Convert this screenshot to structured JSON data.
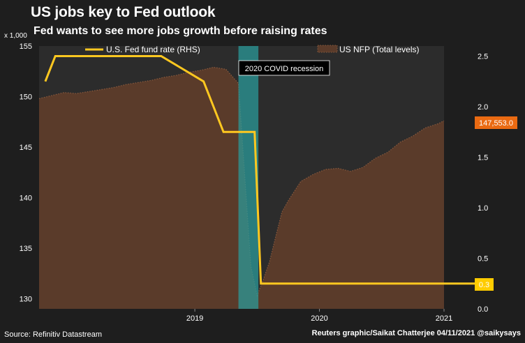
{
  "title": "US jobs key to Fed outlook",
  "subtitle": "Fed wants to see more jobs growth before raising rates",
  "source": "Source: Refinitiv Datastream",
  "credit": "Reuters graphic/Saikat Chatterjee 04/11/2021 @saikysays",
  "colors": {
    "background": "#1e1e1e",
    "plot_area": "#2c2c2c",
    "fed_line": "#ffc820",
    "nfp_area": "#5a3b2a",
    "nfp_edge": "#8a5a3e",
    "recession_band": "#2a9c9c",
    "nfp_badge": "#ea6a12",
    "fed_badge": "#ffcc00"
  },
  "chart_data": {
    "type": "area",
    "x_axis": {
      "ticks": [
        "2019",
        "2020",
        "2021"
      ],
      "tick_positions": [
        2019.25,
        2020.25,
        2021.25
      ],
      "range": [
        2018.0,
        2021.25
      ]
    },
    "y_left": {
      "unit_label": "x 1,000",
      "min": 129,
      "max": 155,
      "ticks": [
        130,
        135,
        140,
        145,
        150,
        155
      ]
    },
    "y_right": {
      "min": 0,
      "max": 2.6,
      "ticks": [
        "0.0",
        "0.5",
        "1.0",
        "1.5",
        "2.0",
        "2.5"
      ]
    },
    "annotation": {
      "text": "2020 COVID recession",
      "start": 2019.6,
      "end": 2019.76
    },
    "series": [
      {
        "name": "U.S. Fed fund rate (RHS)",
        "axis": "right",
        "style": "line",
        "x": [
          2018.05,
          2018.13,
          2018.75,
          2018.98,
          2019.32,
          2019.48,
          2019.6,
          2019.73,
          2019.78,
          2021.25
        ],
        "y": [
          2.25,
          2.5,
          2.5,
          2.5,
          2.25,
          1.75,
          1.75,
          1.75,
          0.25,
          0.25
        ]
      },
      {
        "name": "US NFP (Total levels)",
        "axis": "left",
        "style": "area",
        "x": [
          2018.0,
          2018.1,
          2018.2,
          2018.3,
          2018.4,
          2018.5,
          2018.6,
          2018.7,
          2018.8,
          2018.9,
          2019.0,
          2019.1,
          2019.2,
          2019.3,
          2019.4,
          2019.5,
          2019.6,
          2019.7,
          2019.75,
          2019.8,
          2019.85,
          2019.9,
          2019.95,
          2020.0,
          2020.1,
          2020.2,
          2020.3,
          2020.4,
          2020.5,
          2020.6,
          2020.7,
          2020.8,
          2020.9,
          2021.0,
          2021.1,
          2021.2,
          2021.25
        ],
        "y": [
          149.8,
          150.1,
          150.4,
          150.3,
          150.5,
          150.7,
          150.9,
          151.2,
          151.4,
          151.6,
          151.9,
          152.1,
          152.4,
          152.6,
          152.9,
          152.7,
          151.3,
          133.2,
          130.3,
          131.9,
          133.7,
          136.2,
          138.6,
          139.7,
          141.6,
          142.3,
          142.8,
          142.9,
          142.6,
          143.0,
          143.9,
          144.5,
          145.5,
          146.1,
          146.9,
          147.3,
          147.6
        ]
      }
    ],
    "end_labels": {
      "nfp": "147,553.0",
      "fed": "0.3"
    },
    "legend": "top"
  }
}
